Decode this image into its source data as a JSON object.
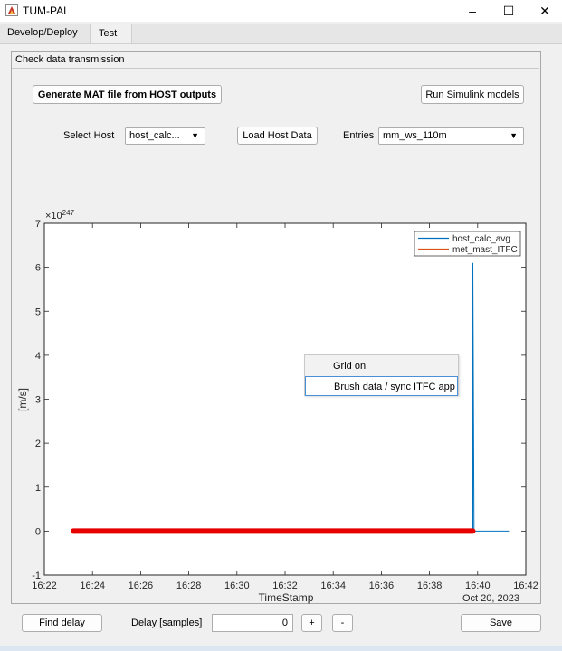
{
  "window": {
    "title": "TUM-PAL",
    "minimize": "–",
    "maximize": "☐",
    "close": "✕"
  },
  "tabs": [
    {
      "label": "Develop/Deploy",
      "active": false
    },
    {
      "label": "Test",
      "active": true
    }
  ],
  "panel": {
    "title": "Check data transmission"
  },
  "buttons": {
    "generate_mat": "Generate MAT file from HOST outputs",
    "run_simulink": "Run Simulink models",
    "load_host_data": "Load Host Data",
    "find_delay": "Find delay",
    "plus": "+",
    "minus": "-",
    "save": "Save"
  },
  "select_host": {
    "label": "Select Host",
    "value": "host_calc..."
  },
  "entries": {
    "label": "Entries",
    "value": "mm_ws_110m"
  },
  "delay": {
    "label": "Delay [samples]",
    "value": "0"
  },
  "context_menu": {
    "items": [
      {
        "label": "Grid on",
        "highlighted": false
      },
      {
        "label": "Brush data / sync ITFC app",
        "highlighted": true
      }
    ]
  },
  "chart_data": {
    "type": "line",
    "xlabel": "TimeStamp",
    "ylabel": "[m/s]",
    "y_exponent_label": "×10",
    "y_exponent_power": "247",
    "x_ticks": [
      "16:22",
      "16:24",
      "16:26",
      "16:28",
      "16:30",
      "16:32",
      "16:34",
      "16:36",
      "16:38",
      "16:40",
      "16:42"
    ],
    "x_date_label": "Oct 20, 2023",
    "y_ticks": [
      "-1",
      "0",
      "1",
      "2",
      "3",
      "4",
      "5",
      "6",
      "7"
    ],
    "ylim": [
      -1,
      7
    ],
    "xlim": [
      "16:22",
      "16:42"
    ],
    "grid": false,
    "legend_position": "top-right",
    "series": [
      {
        "name": "host_calc_avg",
        "color": "#0072bd",
        "points": [
          {
            "x": "16:23.2",
            "y": 0
          },
          {
            "x": "16:39.8",
            "y": 0
          },
          {
            "x": "16:39.8",
            "y": 6.1
          },
          {
            "x": "16:39.85",
            "y": 0
          },
          {
            "x": "16:41.3",
            "y": 0
          }
        ]
      },
      {
        "name": "met_mast_ITFC",
        "color": "#d95319",
        "points": []
      }
    ],
    "brushed": {
      "color": "#e60000",
      "x_start": "16:23.2",
      "x_end": "16:39.8",
      "y": 0
    }
  }
}
